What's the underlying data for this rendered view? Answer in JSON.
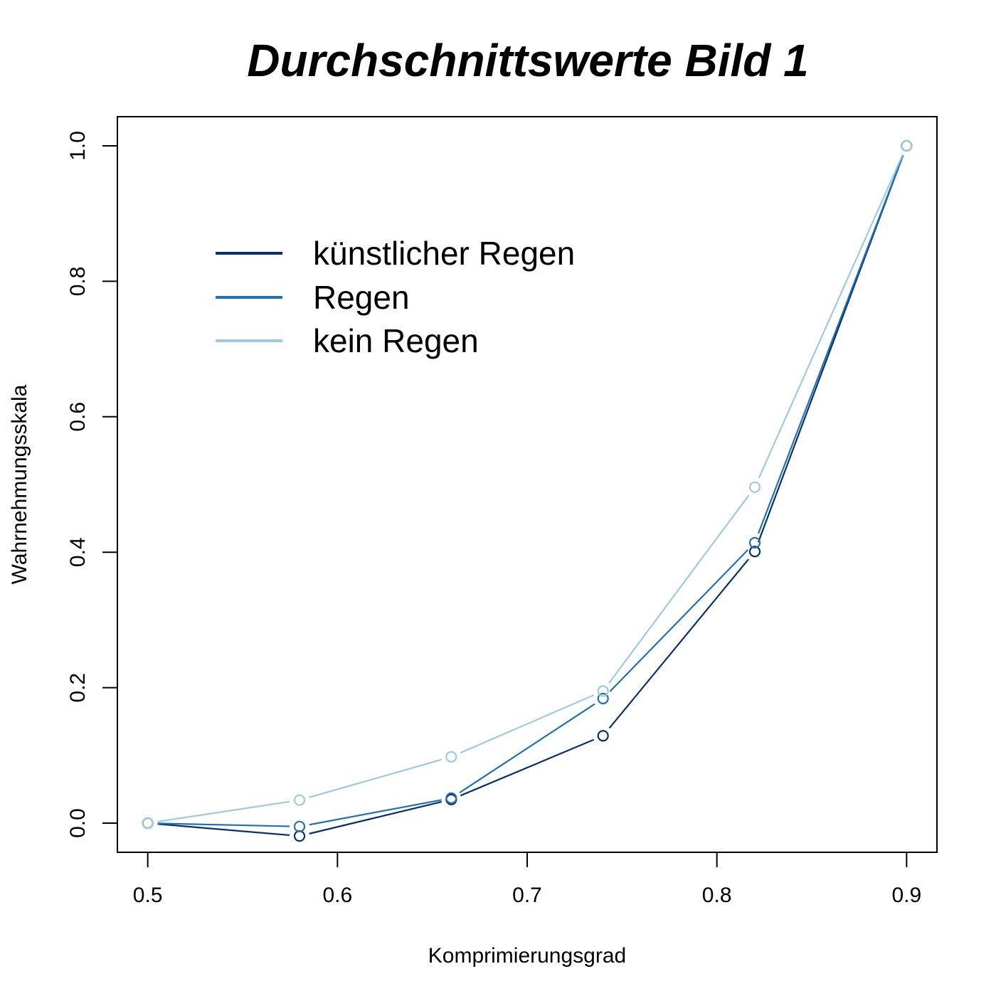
{
  "chart_data": {
    "type": "line",
    "title": "Durchschnittswerte Bild 1",
    "xlabel": "Komprimierungsgrad",
    "ylabel": "Wahrnehmungsskala",
    "xlim": [
      0.484,
      0.916
    ],
    "ylim": [
      -0.043,
      1.043
    ],
    "x_ticks": [
      "0.5",
      "0.6",
      "0.7",
      "0.8",
      "0.9"
    ],
    "y_ticks": [
      "0.0",
      "0.2",
      "0.4",
      "0.6",
      "0.8",
      "1.0"
    ],
    "x": [
      0.5,
      0.58,
      0.66,
      0.74,
      0.82,
      0.9
    ],
    "series": [
      {
        "name": "künstlicher Regen",
        "color": "#08306b",
        "values": [
          0.0,
          -0.019,
          0.035,
          0.129,
          0.401,
          1.0
        ]
      },
      {
        "name": "Regen",
        "color": "#2171b5",
        "values": [
          0.0,
          -0.005,
          0.037,
          0.184,
          0.414,
          1.0
        ]
      },
      {
        "name": "kein Regen",
        "color": "#9ecae1",
        "values": [
          0.0,
          0.034,
          0.098,
          0.195,
          0.496,
          1.0
        ]
      }
    ],
    "legend_position": "top-left",
    "grid": false
  }
}
